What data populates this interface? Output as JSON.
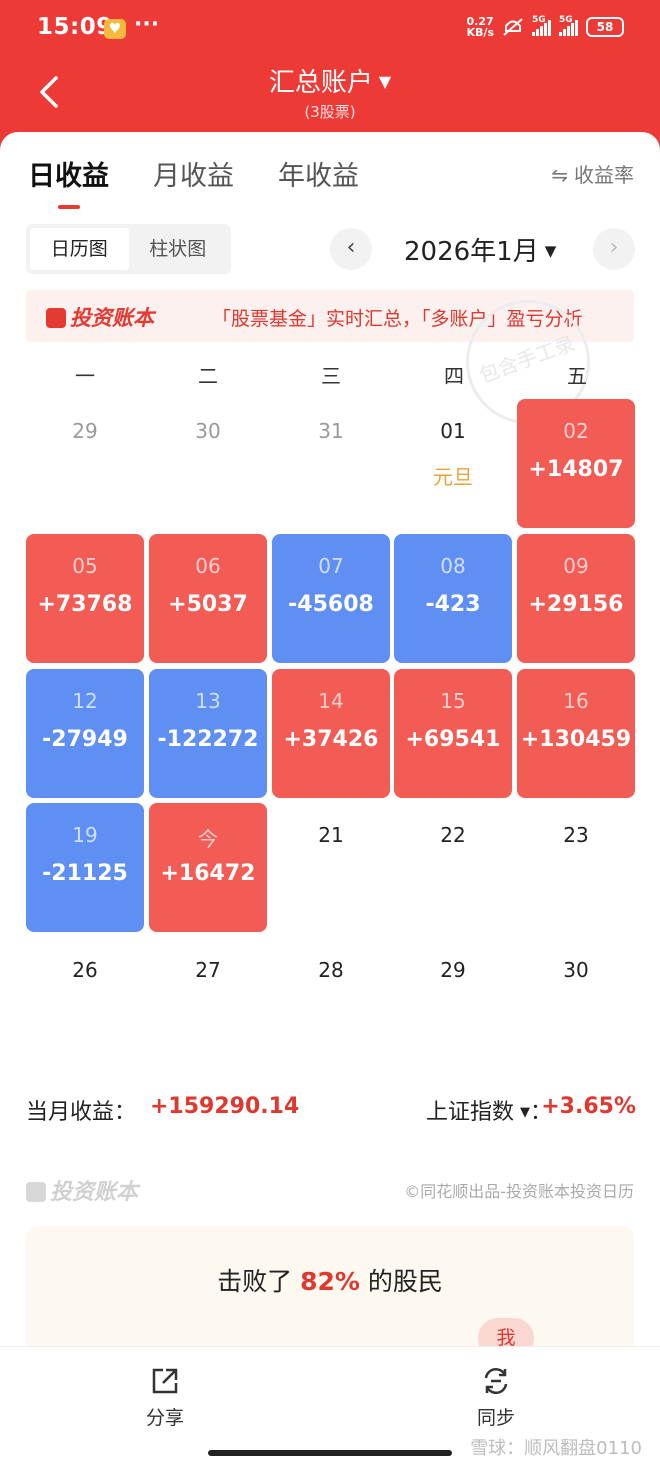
{
  "status_bar": {
    "time": "15:09",
    "dots": "···",
    "net_speed_top": "0.27",
    "net_speed_bottom": "KB/s",
    "sim1": "5G",
    "sim2": "5G",
    "battery": "58"
  },
  "header": {
    "title": "汇总账户",
    "subtitle": "(3股票)"
  },
  "tabs": [
    {
      "label": "日收益",
      "active": true
    },
    {
      "label": "月收益",
      "active": false
    },
    {
      "label": "年收益",
      "active": false
    }
  ],
  "rate_toggle": "收益率",
  "view_toggle": [
    "日历图",
    "柱状图"
  ],
  "month": "2026年1月",
  "banner": {
    "brand": "投资账本",
    "text": "「股票基金」实时汇总，「多账户」盈亏分析"
  },
  "stamp_text": "包含手工录",
  "weekdays": [
    "一",
    "二",
    "三",
    "四",
    "五"
  ],
  "calendar": [
    {
      "day": "29",
      "style": "grey"
    },
    {
      "day": "30",
      "style": "grey"
    },
    {
      "day": "31",
      "style": "grey"
    },
    {
      "day": "01",
      "style": "plain",
      "holiday": "元旦"
    },
    {
      "day": "02",
      "style": "up",
      "value": "+14807"
    },
    {
      "day": "05",
      "style": "up",
      "value": "+73768"
    },
    {
      "day": "06",
      "style": "up",
      "value": "+5037"
    },
    {
      "day": "07",
      "style": "down",
      "value": "-45608"
    },
    {
      "day": "08",
      "style": "down",
      "value": "-423"
    },
    {
      "day": "09",
      "style": "up",
      "value": "+29156"
    },
    {
      "day": "12",
      "style": "down",
      "value": "-27949"
    },
    {
      "day": "13",
      "style": "down",
      "value": "-122272"
    },
    {
      "day": "14",
      "style": "up",
      "value": "+37426"
    },
    {
      "day": "15",
      "style": "up",
      "value": "+69541"
    },
    {
      "day": "16",
      "style": "up",
      "value": "+130459"
    },
    {
      "day": "19",
      "style": "down",
      "value": "-21125"
    },
    {
      "day": "今",
      "style": "up",
      "value": "+16472"
    },
    {
      "day": "21",
      "style": "plain"
    },
    {
      "day": "22",
      "style": "plain"
    },
    {
      "day": "23",
      "style": "plain"
    },
    {
      "day": "26",
      "style": "plain"
    },
    {
      "day": "27",
      "style": "plain"
    },
    {
      "day": "28",
      "style": "plain"
    },
    {
      "day": "29",
      "style": "plain"
    },
    {
      "day": "30",
      "style": "plain"
    }
  ],
  "summary": {
    "month_label": "当月收益：",
    "month_value": "+159290.14",
    "index_label": "上证指数",
    "index_colon": "：",
    "index_value": "+3.65%"
  },
  "footer": {
    "brand": "投资账本",
    "copyright": "©同花顺出品-投资账本投资日历"
  },
  "beat": {
    "prefix": "击败了",
    "percent": "82%",
    "suffix": "的股民",
    "me": "我"
  },
  "bottom_bar": {
    "share": "分享",
    "sync": "同步"
  },
  "watermark": "雪球：顺风翻盘0110",
  "colors": {
    "brand_red": "#ee3a36",
    "gain": "#f25c54",
    "loss": "#5f8ff3",
    "holiday": "#e6a33a"
  }
}
